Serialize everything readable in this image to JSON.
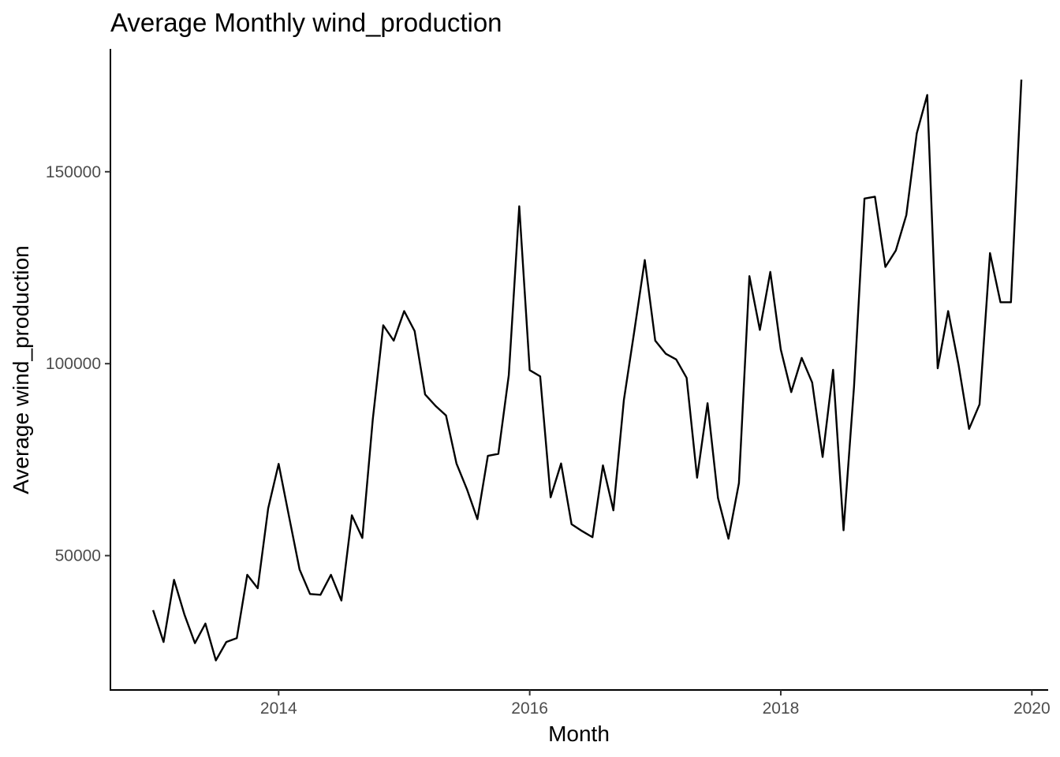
{
  "chart_data": {
    "type": "line",
    "title": "Average Monthly wind_production",
    "xlabel": "Month",
    "ylabel": "Average wind_production",
    "x_start": "2013-01",
    "x_step": "month",
    "x_range_years": [
      2012.66,
      2020.13
    ],
    "ylim": [
      15000,
      182000
    ],
    "grid": false,
    "legend": "none",
    "line_color": "#000000",
    "x_ticks": [
      {
        "value": 2014,
        "label": "2014"
      },
      {
        "value": 2016,
        "label": "2016"
      },
      {
        "value": 2018,
        "label": "2018"
      },
      {
        "value": 2020,
        "label": "2020"
      }
    ],
    "y_ticks": [
      {
        "value": 50000,
        "label": "50000"
      },
      {
        "value": 100000,
        "label": "100000"
      },
      {
        "value": 150000,
        "label": "150000"
      }
    ],
    "series": [
      {
        "values": [
          35800,
          27500,
          43700,
          34600,
          27200,
          32300,
          22700,
          27500,
          28500,
          45000,
          41500,
          62300,
          73900,
          60100,
          46400,
          40000,
          39800,
          45000,
          38300,
          60500,
          54600,
          85500,
          110000,
          106000,
          113700,
          108500,
          92000,
          89000,
          86500,
          74000,
          67300,
          59500,
          76000,
          76500,
          97000,
          141000,
          98300,
          96700,
          65200,
          74000,
          58200,
          56400,
          54800,
          73500,
          61800,
          90500,
          108500,
          127000,
          106000,
          102600,
          101100,
          96300,
          70300,
          89700,
          65000,
          54400,
          68900,
          122800,
          108800,
          123900,
          103700,
          92600,
          101500,
          95100,
          75700,
          98400,
          56600,
          94000,
          143000,
          143500,
          125200,
          129500,
          138700,
          160000,
          170000,
          98800,
          113700,
          99600,
          83000,
          89400,
          128800,
          116000,
          116000,
          174000
        ]
      }
    ]
  }
}
